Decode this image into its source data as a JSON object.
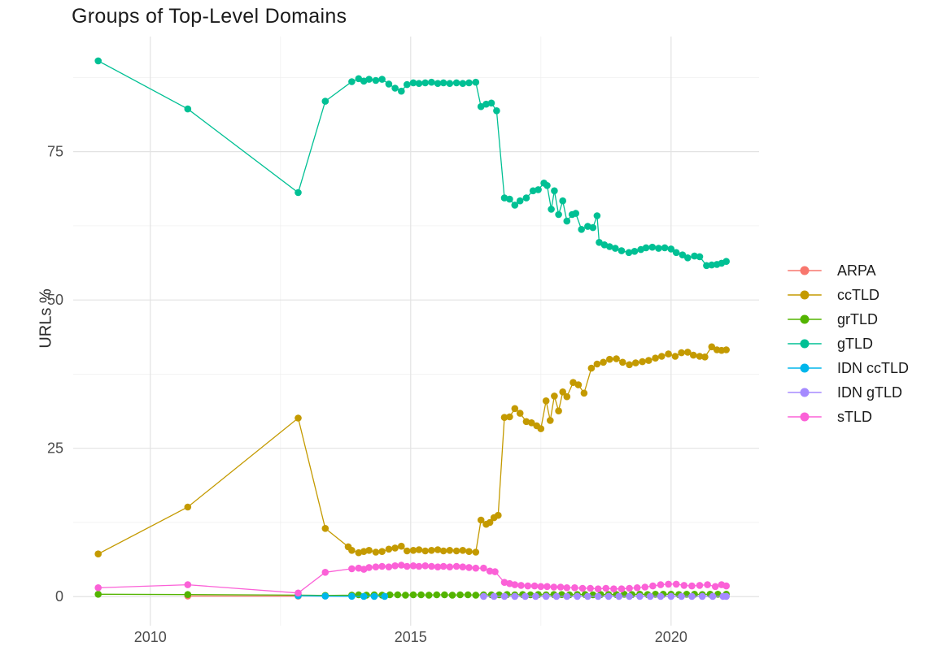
{
  "chart_data": {
    "type": "line",
    "title": "Groups of Top-Level Domains",
    "ylabel": "URLs %",
    "xlabel": "",
    "grid": true,
    "legend_position": "right",
    "xlim": [
      2008.52,
      2021.69
    ],
    "ylim": [
      -4.9,
      94.4
    ],
    "x_major_ticks": [
      2010,
      2015,
      2020
    ],
    "x_minor_gridlines": [
      2012.5,
      2017.5
    ],
    "y_major_ticks": [
      0,
      25,
      50,
      75
    ],
    "y_minor_gridlines": [
      12.5,
      37.5,
      62.5,
      87.5
    ],
    "series": [
      {
        "name": "ARPA",
        "color": "#F8766D",
        "points": [
          [
            2010.72,
            0.1
          ],
          [
            2012.84,
            0.08
          ]
        ]
      },
      {
        "name": "ccTLD",
        "color": "#C49A00",
        "points": [
          [
            2009.0,
            7.2
          ],
          [
            2010.72,
            15.1
          ],
          [
            2012.84,
            30.1
          ],
          [
            2013.36,
            11.5
          ],
          [
            2013.8,
            8.4
          ],
          [
            2013.87,
            7.8
          ],
          [
            2014.0,
            7.4
          ],
          [
            2014.1,
            7.6
          ],
          [
            2014.2,
            7.8
          ],
          [
            2014.33,
            7.5
          ],
          [
            2014.45,
            7.6
          ],
          [
            2014.58,
            8.0
          ],
          [
            2014.7,
            8.2
          ],
          [
            2014.82,
            8.5
          ],
          [
            2014.93,
            7.7
          ],
          [
            2015.05,
            7.8
          ],
          [
            2015.16,
            7.9
          ],
          [
            2015.28,
            7.7
          ],
          [
            2015.4,
            7.8
          ],
          [
            2015.52,
            7.9
          ],
          [
            2015.63,
            7.7
          ],
          [
            2015.75,
            7.8
          ],
          [
            2015.88,
            7.7
          ],
          [
            2016.0,
            7.8
          ],
          [
            2016.12,
            7.6
          ],
          [
            2016.25,
            7.5
          ],
          [
            2016.35,
            12.9
          ],
          [
            2016.45,
            12.2
          ],
          [
            2016.52,
            12.5
          ],
          [
            2016.6,
            13.3
          ],
          [
            2016.68,
            13.7
          ],
          [
            2016.8,
            30.2
          ],
          [
            2016.9,
            30.3
          ],
          [
            2017.0,
            31.7
          ],
          [
            2017.1,
            30.9
          ],
          [
            2017.22,
            29.5
          ],
          [
            2017.32,
            29.3
          ],
          [
            2017.42,
            28.8
          ],
          [
            2017.5,
            28.3
          ],
          [
            2017.6,
            33.0
          ],
          [
            2017.68,
            29.7
          ],
          [
            2017.76,
            33.8
          ],
          [
            2017.84,
            31.3
          ],
          [
            2017.92,
            34.5
          ],
          [
            2018.0,
            33.7
          ],
          [
            2018.12,
            36.1
          ],
          [
            2018.22,
            35.7
          ],
          [
            2018.33,
            34.3
          ],
          [
            2018.47,
            38.5
          ],
          [
            2018.58,
            39.2
          ],
          [
            2018.7,
            39.5
          ],
          [
            2018.82,
            40.0
          ],
          [
            2018.95,
            40.1
          ],
          [
            2019.07,
            39.5
          ],
          [
            2019.2,
            39.1
          ],
          [
            2019.32,
            39.4
          ],
          [
            2019.45,
            39.6
          ],
          [
            2019.57,
            39.8
          ],
          [
            2019.7,
            40.2
          ],
          [
            2019.82,
            40.5
          ],
          [
            2019.95,
            40.9
          ],
          [
            2020.08,
            40.5
          ],
          [
            2020.2,
            41.1
          ],
          [
            2020.32,
            41.2
          ],
          [
            2020.43,
            40.7
          ],
          [
            2020.55,
            40.5
          ],
          [
            2020.65,
            40.4
          ],
          [
            2020.78,
            42.1
          ],
          [
            2020.88,
            41.6
          ],
          [
            2020.97,
            41.5
          ],
          [
            2021.06,
            41.6
          ]
        ]
      },
      {
        "name": "grTLD",
        "color": "#53B400",
        "points": [
          [
            2009.0,
            0.4
          ],
          [
            2010.72,
            0.35
          ],
          [
            2012.84,
            0.25
          ],
          [
            2013.36,
            0.2
          ],
          [
            2013.87,
            0.25
          ],
          [
            2014.0,
            0.3
          ],
          [
            2014.15,
            0.25
          ],
          [
            2014.3,
            0.3
          ],
          [
            2014.45,
            0.25
          ],
          [
            2014.6,
            0.3
          ],
          [
            2014.75,
            0.3
          ],
          [
            2014.9,
            0.25
          ],
          [
            2015.05,
            0.3
          ],
          [
            2015.2,
            0.3
          ],
          [
            2015.35,
            0.25
          ],
          [
            2015.5,
            0.3
          ],
          [
            2015.65,
            0.3
          ],
          [
            2015.8,
            0.25
          ],
          [
            2015.95,
            0.3
          ],
          [
            2016.1,
            0.3
          ],
          [
            2016.25,
            0.25
          ],
          [
            2016.4,
            0.3
          ],
          [
            2016.55,
            0.3
          ],
          [
            2016.7,
            0.3
          ],
          [
            2016.85,
            0.35
          ],
          [
            2017.0,
            0.3
          ],
          [
            2017.15,
            0.35
          ],
          [
            2017.3,
            0.3
          ],
          [
            2017.45,
            0.35
          ],
          [
            2017.6,
            0.3
          ],
          [
            2017.75,
            0.35
          ],
          [
            2017.9,
            0.35
          ],
          [
            2018.05,
            0.3
          ],
          [
            2018.2,
            0.35
          ],
          [
            2018.35,
            0.35
          ],
          [
            2018.5,
            0.3
          ],
          [
            2018.65,
            0.35
          ],
          [
            2018.8,
            0.35
          ],
          [
            2018.95,
            0.35
          ],
          [
            2019.1,
            0.4
          ],
          [
            2019.25,
            0.35
          ],
          [
            2019.4,
            0.4
          ],
          [
            2019.55,
            0.35
          ],
          [
            2019.7,
            0.4
          ],
          [
            2019.85,
            0.4
          ],
          [
            2020.0,
            0.4
          ],
          [
            2020.15,
            0.35
          ],
          [
            2020.3,
            0.4
          ],
          [
            2020.45,
            0.4
          ],
          [
            2020.6,
            0.35
          ],
          [
            2020.75,
            0.4
          ],
          [
            2020.9,
            0.4
          ],
          [
            2021.06,
            0.4
          ]
        ]
      },
      {
        "name": "gTLD",
        "color": "#00C094",
        "points": [
          [
            2009.0,
            90.3
          ],
          [
            2010.72,
            82.2
          ],
          [
            2012.84,
            68.1
          ],
          [
            2013.36,
            83.5
          ],
          [
            2013.87,
            86.8
          ],
          [
            2014.0,
            87.3
          ],
          [
            2014.1,
            86.9
          ],
          [
            2014.2,
            87.2
          ],
          [
            2014.33,
            87.0
          ],
          [
            2014.45,
            87.2
          ],
          [
            2014.58,
            86.4
          ],
          [
            2014.7,
            85.7
          ],
          [
            2014.82,
            85.2
          ],
          [
            2014.93,
            86.3
          ],
          [
            2015.05,
            86.6
          ],
          [
            2015.16,
            86.5
          ],
          [
            2015.28,
            86.6
          ],
          [
            2015.4,
            86.7
          ],
          [
            2015.52,
            86.5
          ],
          [
            2015.63,
            86.6
          ],
          [
            2015.75,
            86.5
          ],
          [
            2015.88,
            86.6
          ],
          [
            2016.0,
            86.5
          ],
          [
            2016.12,
            86.6
          ],
          [
            2016.25,
            86.7
          ],
          [
            2016.35,
            82.6
          ],
          [
            2016.45,
            83.0
          ],
          [
            2016.55,
            83.2
          ],
          [
            2016.65,
            81.9
          ],
          [
            2016.8,
            67.2
          ],
          [
            2016.9,
            67.0
          ],
          [
            2017.0,
            66.0
          ],
          [
            2017.1,
            66.7
          ],
          [
            2017.22,
            67.2
          ],
          [
            2017.35,
            68.4
          ],
          [
            2017.45,
            68.6
          ],
          [
            2017.56,
            69.7
          ],
          [
            2017.62,
            69.3
          ],
          [
            2017.7,
            65.3
          ],
          [
            2017.76,
            68.4
          ],
          [
            2017.84,
            64.4
          ],
          [
            2017.92,
            66.7
          ],
          [
            2018.0,
            63.3
          ],
          [
            2018.1,
            64.4
          ],
          [
            2018.17,
            64.6
          ],
          [
            2018.28,
            61.9
          ],
          [
            2018.4,
            62.4
          ],
          [
            2018.5,
            62.2
          ],
          [
            2018.58,
            64.2
          ],
          [
            2018.62,
            59.7
          ],
          [
            2018.72,
            59.3
          ],
          [
            2018.82,
            59.0
          ],
          [
            2018.93,
            58.7
          ],
          [
            2019.05,
            58.3
          ],
          [
            2019.19,
            58.0
          ],
          [
            2019.3,
            58.2
          ],
          [
            2019.42,
            58.5
          ],
          [
            2019.52,
            58.8
          ],
          [
            2019.64,
            58.9
          ],
          [
            2019.76,
            58.7
          ],
          [
            2019.88,
            58.8
          ],
          [
            2020.0,
            58.6
          ],
          [
            2020.1,
            58.0
          ],
          [
            2020.22,
            57.6
          ],
          [
            2020.32,
            57.1
          ],
          [
            2020.45,
            57.4
          ],
          [
            2020.55,
            57.3
          ],
          [
            2020.68,
            55.8
          ],
          [
            2020.78,
            55.9
          ],
          [
            2020.88,
            56.0
          ],
          [
            2020.97,
            56.2
          ],
          [
            2021.06,
            56.5
          ]
        ]
      },
      {
        "name": "IDN ccTLD",
        "color": "#00B6EB",
        "points": [
          [
            2012.84,
            0.15
          ],
          [
            2013.36,
            0.08
          ],
          [
            2013.87,
            0.06
          ],
          [
            2014.1,
            0.05
          ],
          [
            2014.3,
            0.05
          ],
          [
            2014.5,
            0.05
          ]
        ]
      },
      {
        "name": "IDN gTLD",
        "color": "#A58AFF",
        "points": [
          [
            2016.4,
            0.05
          ],
          [
            2016.6,
            0.05
          ],
          [
            2016.8,
            0.05
          ],
          [
            2017.0,
            0.05
          ],
          [
            2017.2,
            0.05
          ],
          [
            2017.4,
            0.05
          ],
          [
            2017.6,
            0.05
          ],
          [
            2017.8,
            0.05
          ],
          [
            2018.0,
            0.05
          ],
          [
            2018.2,
            0.05
          ],
          [
            2018.4,
            0.05
          ],
          [
            2018.6,
            0.05
          ],
          [
            2018.8,
            0.05
          ],
          [
            2019.0,
            0.05
          ],
          [
            2019.2,
            0.05
          ],
          [
            2019.4,
            0.05
          ],
          [
            2019.6,
            0.05
          ],
          [
            2019.8,
            0.05
          ],
          [
            2020.0,
            0.05
          ],
          [
            2020.2,
            0.05
          ],
          [
            2020.4,
            0.05
          ],
          [
            2020.6,
            0.05
          ],
          [
            2020.8,
            0.05
          ],
          [
            2021.0,
            0.05
          ],
          [
            2021.06,
            0.05
          ]
        ]
      },
      {
        "name": "sTLD",
        "color": "#FB61D7",
        "points": [
          [
            2009.0,
            1.5
          ],
          [
            2010.72,
            2.0
          ],
          [
            2012.84,
            0.6
          ],
          [
            2013.36,
            4.1
          ],
          [
            2013.87,
            4.7
          ],
          [
            2014.0,
            4.8
          ],
          [
            2014.1,
            4.6
          ],
          [
            2014.2,
            4.9
          ],
          [
            2014.33,
            5.0
          ],
          [
            2014.45,
            5.1
          ],
          [
            2014.58,
            5.0
          ],
          [
            2014.7,
            5.2
          ],
          [
            2014.82,
            5.3
          ],
          [
            2014.93,
            5.1
          ],
          [
            2015.05,
            5.2
          ],
          [
            2015.16,
            5.1
          ],
          [
            2015.28,
            5.2
          ],
          [
            2015.4,
            5.1
          ],
          [
            2015.52,
            5.0
          ],
          [
            2015.63,
            5.1
          ],
          [
            2015.75,
            5.0
          ],
          [
            2015.88,
            5.1
          ],
          [
            2016.0,
            5.0
          ],
          [
            2016.12,
            4.9
          ],
          [
            2016.25,
            4.8
          ],
          [
            2016.4,
            4.8
          ],
          [
            2016.52,
            4.3
          ],
          [
            2016.62,
            4.2
          ],
          [
            2016.8,
            2.4
          ],
          [
            2016.9,
            2.2
          ],
          [
            2017.0,
            2.0
          ],
          [
            2017.12,
            1.9
          ],
          [
            2017.25,
            1.8
          ],
          [
            2017.38,
            1.8
          ],
          [
            2017.5,
            1.7
          ],
          [
            2017.62,
            1.7
          ],
          [
            2017.75,
            1.6
          ],
          [
            2017.88,
            1.6
          ],
          [
            2018.0,
            1.5
          ],
          [
            2018.15,
            1.5
          ],
          [
            2018.3,
            1.4
          ],
          [
            2018.45,
            1.4
          ],
          [
            2018.6,
            1.3
          ],
          [
            2018.75,
            1.4
          ],
          [
            2018.9,
            1.3
          ],
          [
            2019.05,
            1.3
          ],
          [
            2019.2,
            1.4
          ],
          [
            2019.35,
            1.5
          ],
          [
            2019.5,
            1.6
          ],
          [
            2019.65,
            1.8
          ],
          [
            2019.8,
            2.0
          ],
          [
            2019.95,
            2.1
          ],
          [
            2020.1,
            2.1
          ],
          [
            2020.25,
            1.9
          ],
          [
            2020.4,
            1.8
          ],
          [
            2020.55,
            1.9
          ],
          [
            2020.7,
            2.0
          ],
          [
            2020.85,
            1.7
          ],
          [
            2020.97,
            2.0
          ],
          [
            2021.06,
            1.8
          ]
        ]
      }
    ]
  }
}
